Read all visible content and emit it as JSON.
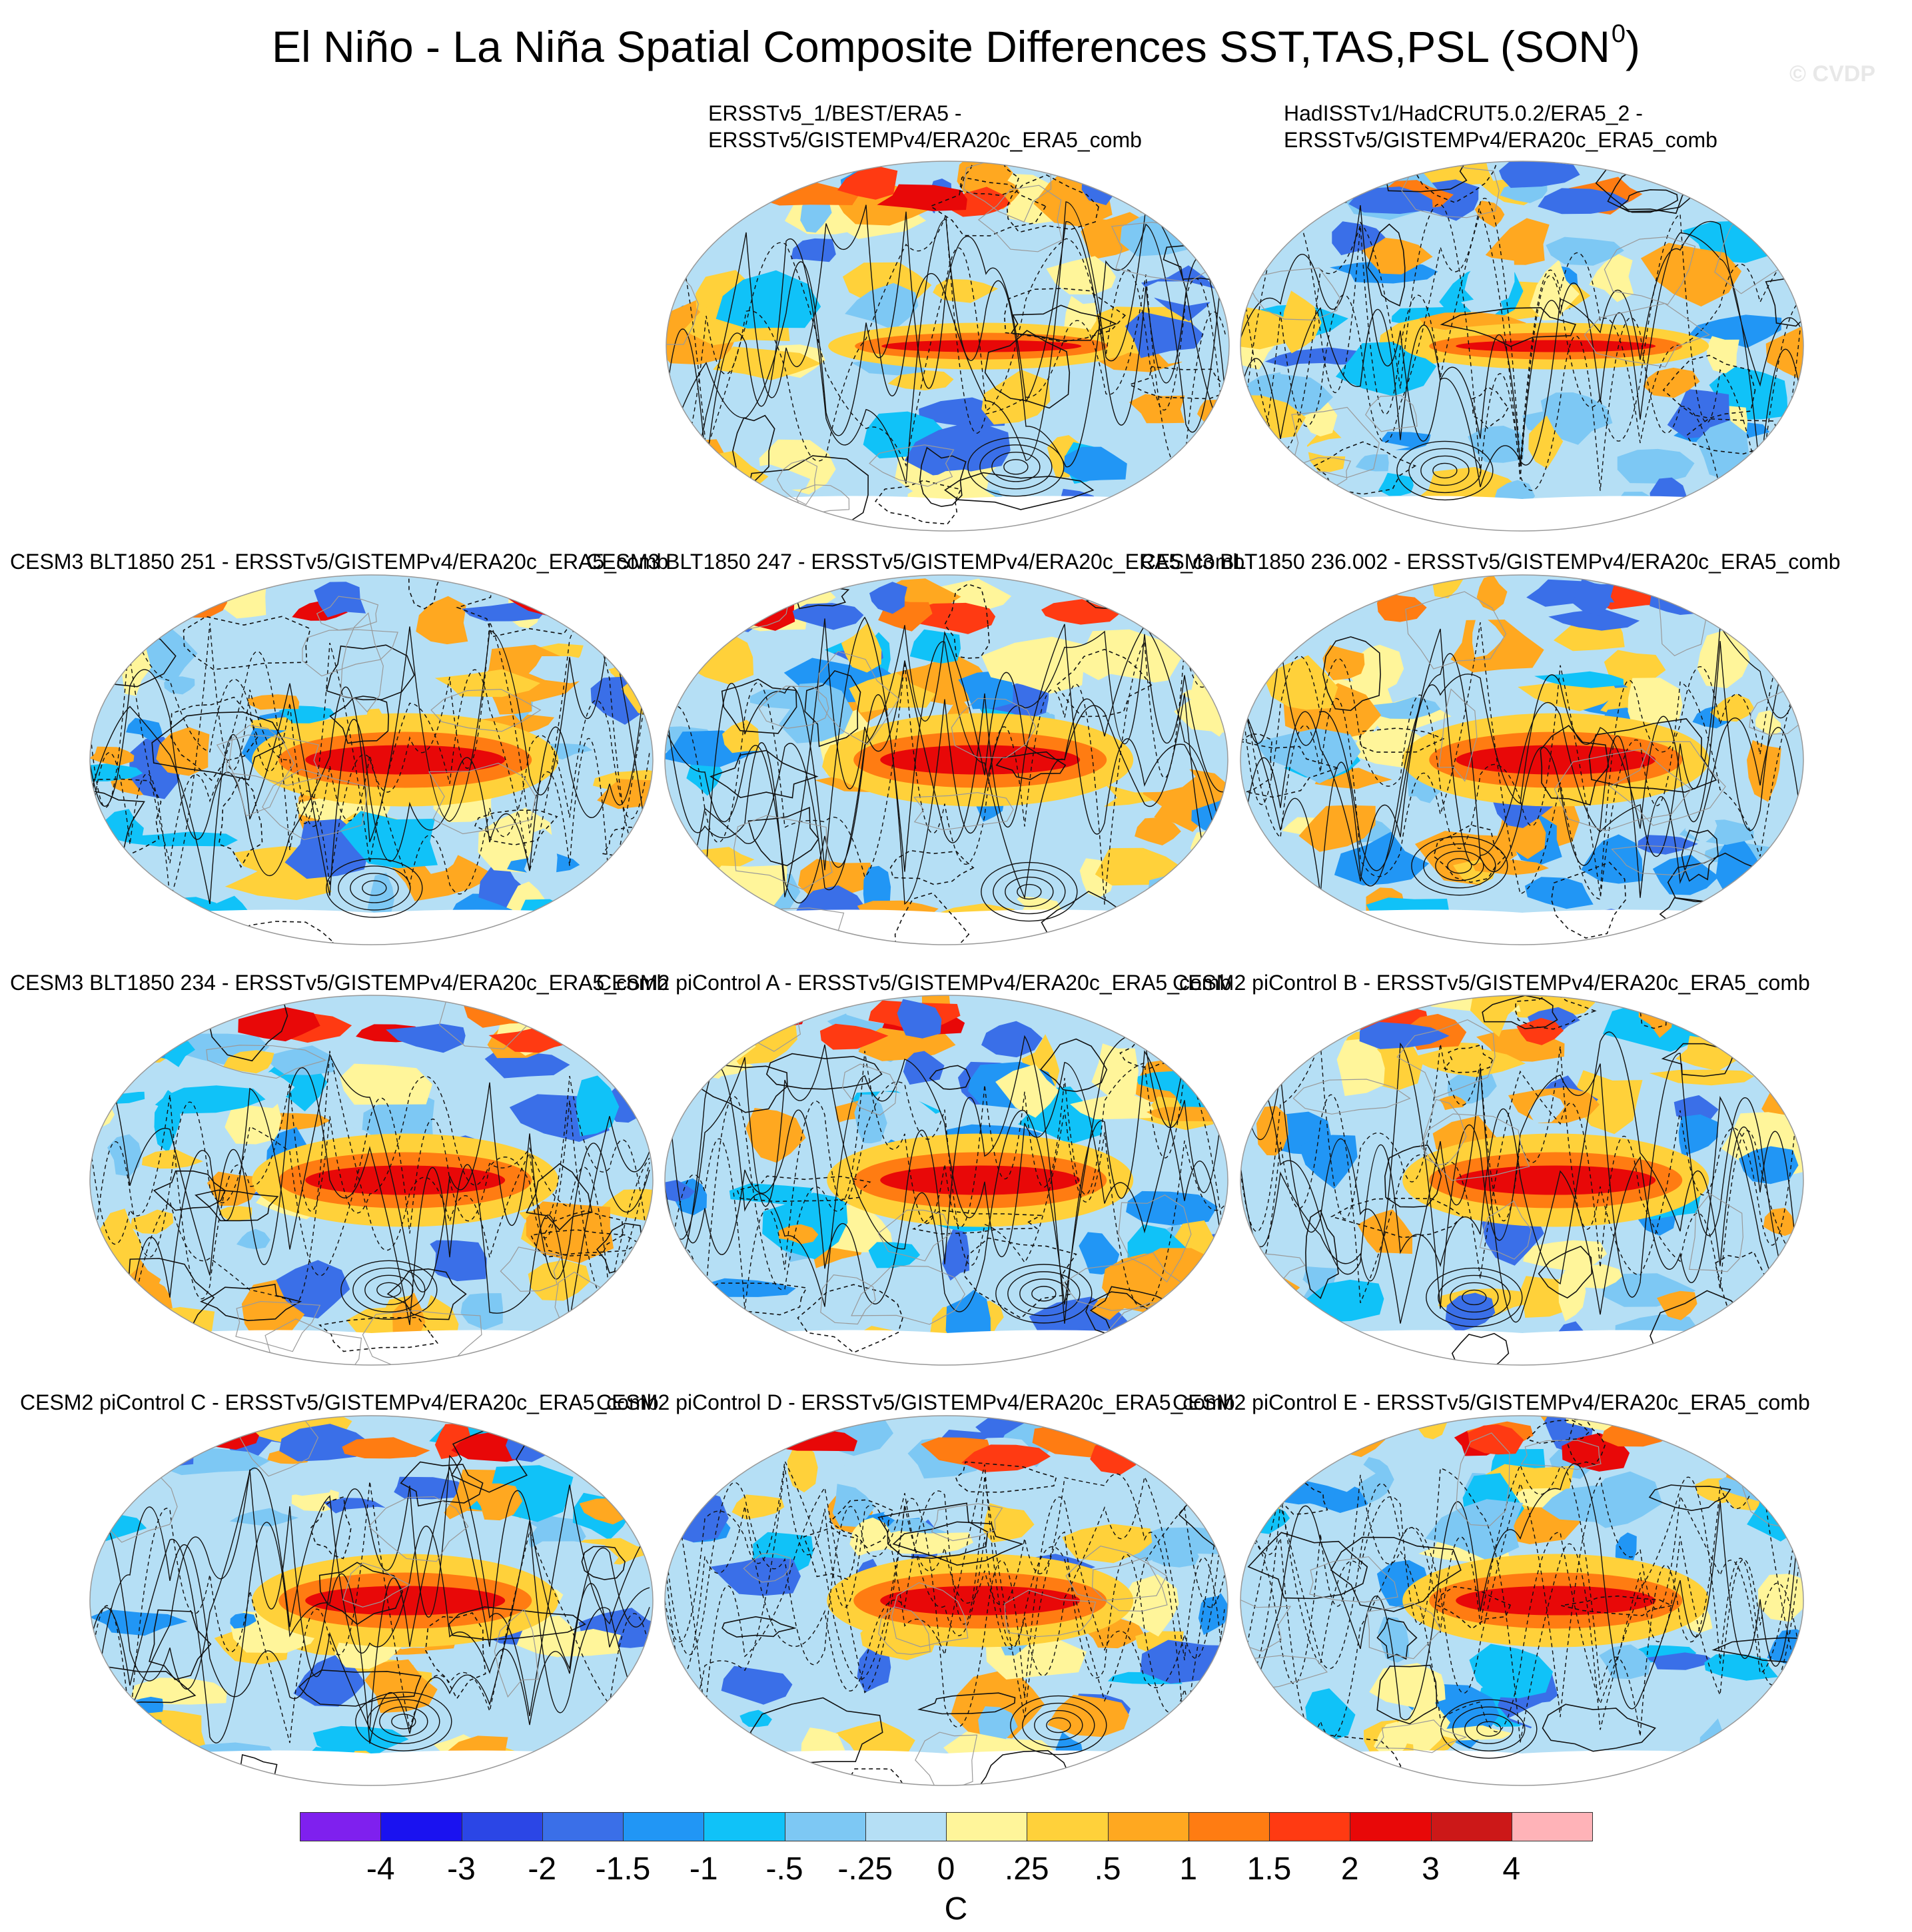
{
  "figure": {
    "title": "El Niño - La Niña Spatial Composite Differences SST,TAS,PSL (SON",
    "title_superscript": "0",
    "title_close": ")",
    "watermark": "© CVDP"
  },
  "panels": [
    {
      "line1": "ERSSTv5_1/BEST/ERA5 -",
      "line2": "ERSSTv5/GISTEMPv4/ERA20c_ERA5_comb"
    },
    {
      "line1": "HadISSTv1/HadCRUT5.0.2/ERA5_2 -",
      "line2": "ERSSTv5/GISTEMPv4/ERA20c_ERA5_comb"
    },
    {
      "line1": "CESM3 BLT1850 251 - ERSSTv5/GISTEMPv4/ERA20c_ERA5_comb",
      "line2": ""
    },
    {
      "line1": "CESM3 BLT1850 247 - ERSSTv5/GISTEMPv4/ERA20c_ERA5_comb",
      "line2": ""
    },
    {
      "line1": "CESM3 BLT1850 236.002 - ERSSTv5/GISTEMPv4/ERA20c_ERA5_comb",
      "line2": ""
    },
    {
      "line1": "CESM3 BLT1850 234 - ERSSTv5/GISTEMPv4/ERA20c_ERA5_comb",
      "line2": ""
    },
    {
      "line1": "CESM2 piControl A - ERSSTv5/GISTEMPv4/ERA20c_ERA5_comb",
      "line2": ""
    },
    {
      "line1": "CESM2 piControl B - ERSSTv5/GISTEMPv4/ERA20c_ERA5_comb",
      "line2": ""
    },
    {
      "line1": "CESM2 piControl C - ERSSTv5/GISTEMPv4/ERA20c_ERA5_comb",
      "line2": ""
    },
    {
      "line1": "CESM2 piControl D - ERSSTv5/GISTEMPv4/ERA20c_ERA5_comb",
      "line2": ""
    },
    {
      "line1": "CESM2 piControl E - ERSSTv5/GISTEMPv4/ERA20c_ERA5_comb",
      "line2": ""
    }
  ],
  "colorbar": {
    "labels": [
      "-4",
      "-3",
      "-2",
      "-1.5",
      "-1",
      "-.5",
      "-.25",
      "0",
      ".25",
      ".5",
      "1",
      "1.5",
      "2",
      "3",
      "4"
    ],
    "colors": [
      "#7f20ee",
      "#1a12f0",
      "#2b46e6",
      "#3a6fe8",
      "#2196f5",
      "#10c2f8",
      "#7dc8f4",
      "#b5dff5",
      "#fff59a",
      "#ffd13a",
      "#ffa820",
      "#ff7c12",
      "#ff3a12",
      "#e80808",
      "#cc1818",
      "#ffb3b8"
    ],
    "units": "C"
  }
}
